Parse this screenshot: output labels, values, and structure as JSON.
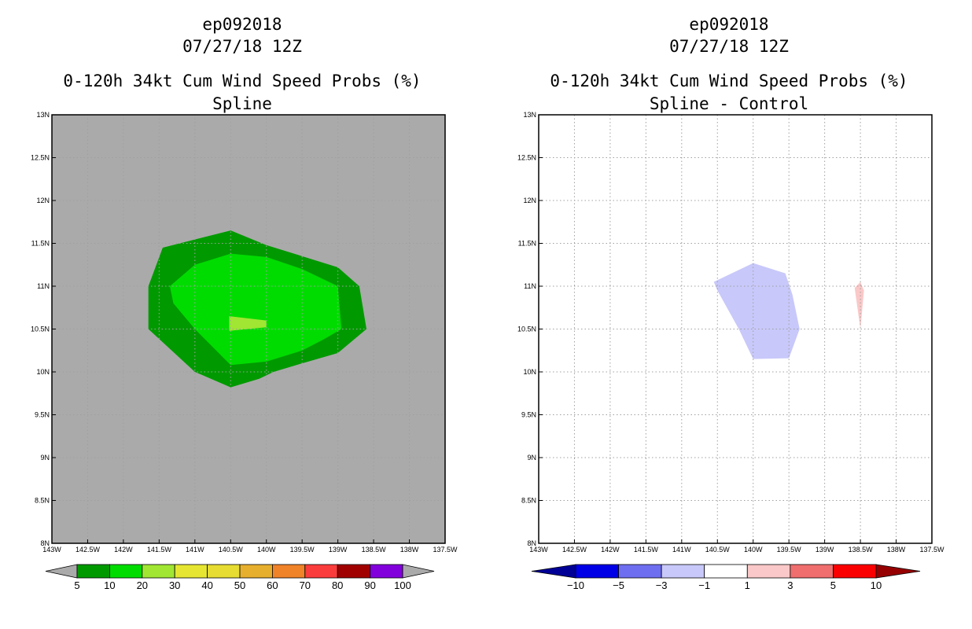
{
  "chart_data": [
    {
      "type": "filled-contour-map",
      "storm_id": "ep092018",
      "date": "07/27/18 12Z",
      "title": "0-120h 34kt Cum Wind Speed Probs (%)",
      "subtitle": "Spline",
      "xlim": [
        -143,
        -137.5
      ],
      "ylim": [
        8,
        13
      ],
      "x_ticks": [
        -143,
        -142.5,
        -142,
        -141.5,
        -141,
        -140.5,
        -140,
        -139.5,
        -139,
        -138.5,
        -138,
        -137.5
      ],
      "x_tick_labels": [
        "143W",
        "142.5W",
        "142W",
        "141.5W",
        "141W",
        "140.5W",
        "140W",
        "139.5W",
        "139W",
        "138.5W",
        "138W",
        "137.5W"
      ],
      "y_ticks": [
        8,
        8.5,
        9,
        9.5,
        10,
        10.5,
        11,
        11.5,
        12,
        12.5,
        13
      ],
      "y_tick_labels": [
        "8N",
        "8.5N",
        "9N",
        "9.5N",
        "10N",
        "10.5N",
        "11N",
        "11.5N",
        "12N",
        "12.5N",
        "13N"
      ],
      "background_color": "#aaaaaa",
      "grid": true,
      "contours": [
        {
          "level": "5-10",
          "color": "#009a00",
          "points": [
            [
              -141.65,
              11
            ],
            [
              -141.45,
              11.45
            ],
            [
              -140.5,
              11.65
            ],
            [
              -140,
              11.48
            ],
            [
              -139,
              11.22
            ],
            [
              -138.7,
              11
            ],
            [
              -138.6,
              10.5
            ],
            [
              -139,
              10.22
            ],
            [
              -139.5,
              10.1
            ],
            [
              -139.9,
              10
            ],
            [
              -140.1,
              9.92
            ],
            [
              -140.5,
              9.82
            ],
            [
              -141,
              10
            ],
            [
              -141.65,
              10.5
            ]
          ]
        },
        {
          "level": "10-20",
          "color": "#00dc00",
          "points": [
            [
              -141.35,
              11
            ],
            [
              -141,
              11.25
            ],
            [
              -140.5,
              11.38
            ],
            [
              -140,
              11.34
            ],
            [
              -139.5,
              11.2
            ],
            [
              -139,
              11
            ],
            [
              -138.95,
              10.5
            ],
            [
              -139.2,
              10.38
            ],
            [
              -139.5,
              10.25
            ],
            [
              -140,
              10.12
            ],
            [
              -140.5,
              10.08
            ],
            [
              -141,
              10.5
            ],
            [
              -141.3,
              10.8
            ]
          ]
        },
        {
          "level": "20-30",
          "color": "#a0e632",
          "points": [
            [
              -140.52,
              10.65
            ],
            [
              -140,
              10.6
            ],
            [
              -140,
              10.52
            ],
            [
              -140.52,
              10.48
            ]
          ]
        }
      ],
      "colorbar": {
        "labels": [
          "5",
          "10",
          "20",
          "30",
          "40",
          "50",
          "60",
          "70",
          "80",
          "90",
          "100"
        ],
        "colors": [
          "#009a00",
          "#00dc00",
          "#a0e632",
          "#e6e632",
          "#e6dc32",
          "#e6af2d",
          "#f08228",
          "#fa3c3c",
          "#a00000",
          "#8200dc"
        ],
        "under_color": "#aaaaaa",
        "over_color": "#aaaaaa"
      }
    },
    {
      "type": "filled-contour-map",
      "storm_id": "ep092018",
      "date": "07/27/18 12Z",
      "title": "0-120h 34kt Cum Wind Speed Probs (%)",
      "subtitle": "Spline - Control",
      "xlim": [
        -143,
        -137.5
      ],
      "ylim": [
        8,
        13
      ],
      "x_ticks": [
        -143,
        -142.5,
        -142,
        -141.5,
        -141,
        -140.5,
        -140,
        -139.5,
        -139,
        -138.5,
        -138,
        -137.5
      ],
      "x_tick_labels": [
        "143W",
        "142.5W",
        "142W",
        "141.5W",
        "141W",
        "140.5W",
        "140W",
        "139.5W",
        "139W",
        "138.5W",
        "138W",
        "137.5W"
      ],
      "y_ticks": [
        8,
        8.5,
        9,
        9.5,
        10,
        10.5,
        11,
        11.5,
        12,
        12.5,
        13
      ],
      "y_tick_labels": [
        "8N",
        "8.5N",
        "9N",
        "9.5N",
        "10N",
        "10.5N",
        "11N",
        "11.5N",
        "12N",
        "12.5N",
        "13N"
      ],
      "background_color": "#ffffff",
      "grid": true,
      "contours": [
        {
          "level": "-3 to -1",
          "color": "#c8c8fa",
          "points": [
            [
              -140.55,
              11.05
            ],
            [
              -140,
              11.27
            ],
            [
              -139.55,
              11.15
            ],
            [
              -139.45,
              10.9
            ],
            [
              -139.35,
              10.5
            ],
            [
              -139.5,
              10.16
            ],
            [
              -140,
              10.15
            ],
            [
              -140.2,
              10.5
            ],
            [
              -140.5,
              10.95
            ]
          ]
        },
        {
          "level": "1 to 3",
          "color": "#fac8c8",
          "points": [
            [
              -138.58,
              10.98
            ],
            [
              -138.5,
              11.05
            ],
            [
              -138.45,
              10.95
            ],
            [
              -138.5,
              10.5
            ]
          ]
        }
      ],
      "colorbar": {
        "labels": [
          "-10",
          "-5",
          "-3",
          "-1",
          "1",
          "3",
          "5",
          "10"
        ],
        "colors": [
          "#0000e6",
          "#6e6ef0",
          "#c8c8fa",
          "#ffffff",
          "#fac8c8",
          "#f06e6e",
          "#fa0000"
        ],
        "under_color": "#000096",
        "over_color": "#960000"
      }
    }
  ]
}
